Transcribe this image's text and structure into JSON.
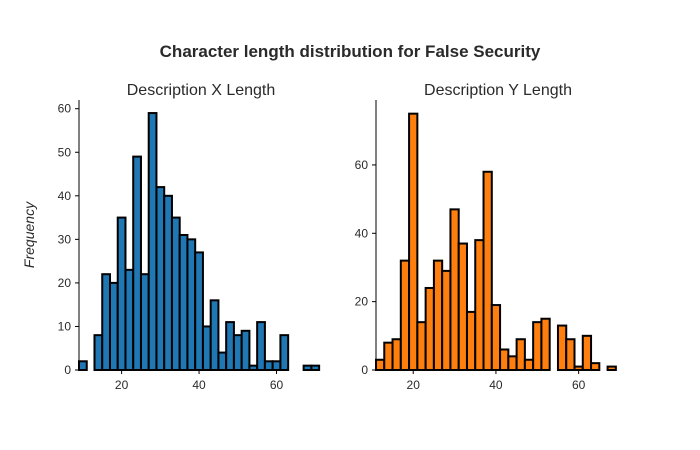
{
  "figure": {
    "suptitle": "Character length distribution for False Security",
    "ylabel": "Frequency"
  },
  "chart_data": [
    {
      "type": "bar",
      "title": "Description X Length",
      "xlabel": "",
      "ylabel": "Frequency",
      "color": "#1f77b4",
      "edgecolor": "#000000",
      "xlim": [
        9,
        72
      ],
      "ylim": [
        0,
        62
      ],
      "xticks": [
        20,
        40,
        60
      ],
      "yticks": [
        0,
        10,
        20,
        30,
        40,
        50,
        60
      ],
      "bin_width": 2,
      "bins": [
        {
          "x0": 9,
          "x1": 11,
          "value": 2
        },
        {
          "x0": 13,
          "x1": 15,
          "value": 8
        },
        {
          "x0": 15,
          "x1": 17,
          "value": 22
        },
        {
          "x0": 17,
          "x1": 19,
          "value": 20
        },
        {
          "x0": 19,
          "x1": 21,
          "value": 35
        },
        {
          "x0": 21,
          "x1": 23,
          "value": 23
        },
        {
          "x0": 23,
          "x1": 25,
          "value": 49
        },
        {
          "x0": 25,
          "x1": 27,
          "value": 22
        },
        {
          "x0": 27,
          "x1": 29,
          "value": 59
        },
        {
          "x0": 29,
          "x1": 31,
          "value": 42
        },
        {
          "x0": 31,
          "x1": 33,
          "value": 40
        },
        {
          "x0": 33,
          "x1": 35,
          "value": 35
        },
        {
          "x0": 35,
          "x1": 37,
          "value": 31
        },
        {
          "x0": 37,
          "x1": 39,
          "value": 30
        },
        {
          "x0": 39,
          "x1": 41,
          "value": 27
        },
        {
          "x0": 41,
          "x1": 43,
          "value": 10
        },
        {
          "x0": 43,
          "x1": 45,
          "value": 16
        },
        {
          "x0": 45,
          "x1": 47,
          "value": 4
        },
        {
          "x0": 47,
          "x1": 49,
          "value": 11
        },
        {
          "x0": 49,
          "x1": 51,
          "value": 8
        },
        {
          "x0": 51,
          "x1": 53,
          "value": 9
        },
        {
          "x0": 53,
          "x1": 55,
          "value": 1
        },
        {
          "x0": 55,
          "x1": 57,
          "value": 11
        },
        {
          "x0": 57,
          "x1": 59,
          "value": 2
        },
        {
          "x0": 59,
          "x1": 61,
          "value": 2
        },
        {
          "x0": 61,
          "x1": 63,
          "value": 8
        },
        {
          "x0": 67,
          "x1": 69,
          "value": 1
        },
        {
          "x0": 69,
          "x1": 71,
          "value": 1
        }
      ]
    },
    {
      "type": "bar",
      "title": "Description Y Length",
      "xlabel": "",
      "ylabel": "",
      "color": "#ff7f0e",
      "edgecolor": "#000000",
      "xlim": [
        11,
        70
      ],
      "ylim": [
        0,
        79
      ],
      "xticks": [
        20,
        40,
        60
      ],
      "yticks": [
        0,
        20,
        40,
        60
      ],
      "bin_width": 2,
      "bins": [
        {
          "x0": 11,
          "x1": 13,
          "value": 3
        },
        {
          "x0": 13,
          "x1": 15,
          "value": 8
        },
        {
          "x0": 15,
          "x1": 17,
          "value": 9
        },
        {
          "x0": 17,
          "x1": 19,
          "value": 32
        },
        {
          "x0": 19,
          "x1": 21,
          "value": 75
        },
        {
          "x0": 21,
          "x1": 23,
          "value": 14
        },
        {
          "x0": 23,
          "x1": 25,
          "value": 24
        },
        {
          "x0": 25,
          "x1": 27,
          "value": 32
        },
        {
          "x0": 27,
          "x1": 29,
          "value": 29
        },
        {
          "x0": 29,
          "x1": 31,
          "value": 47
        },
        {
          "x0": 31,
          "x1": 33,
          "value": 37
        },
        {
          "x0": 33,
          "x1": 35,
          "value": 17
        },
        {
          "x0": 35,
          "x1": 37,
          "value": 38
        },
        {
          "x0": 37,
          "x1": 39,
          "value": 58
        },
        {
          "x0": 39,
          "x1": 41,
          "value": 19
        },
        {
          "x0": 41,
          "x1": 43,
          "value": 6
        },
        {
          "x0": 43,
          "x1": 45,
          "value": 4
        },
        {
          "x0": 45,
          "x1": 47,
          "value": 9
        },
        {
          "x0": 47,
          "x1": 49,
          "value": 3
        },
        {
          "x0": 49,
          "x1": 51,
          "value": 14
        },
        {
          "x0": 51,
          "x1": 53,
          "value": 15
        },
        {
          "x0": 55,
          "x1": 57,
          "value": 13
        },
        {
          "x0": 57,
          "x1": 59,
          "value": 9
        },
        {
          "x0": 59,
          "x1": 61,
          "value": 1
        },
        {
          "x0": 61,
          "x1": 63,
          "value": 10
        },
        {
          "x0": 63,
          "x1": 65,
          "value": 2
        },
        {
          "x0": 67,
          "x1": 69,
          "value": 1
        }
      ]
    }
  ]
}
